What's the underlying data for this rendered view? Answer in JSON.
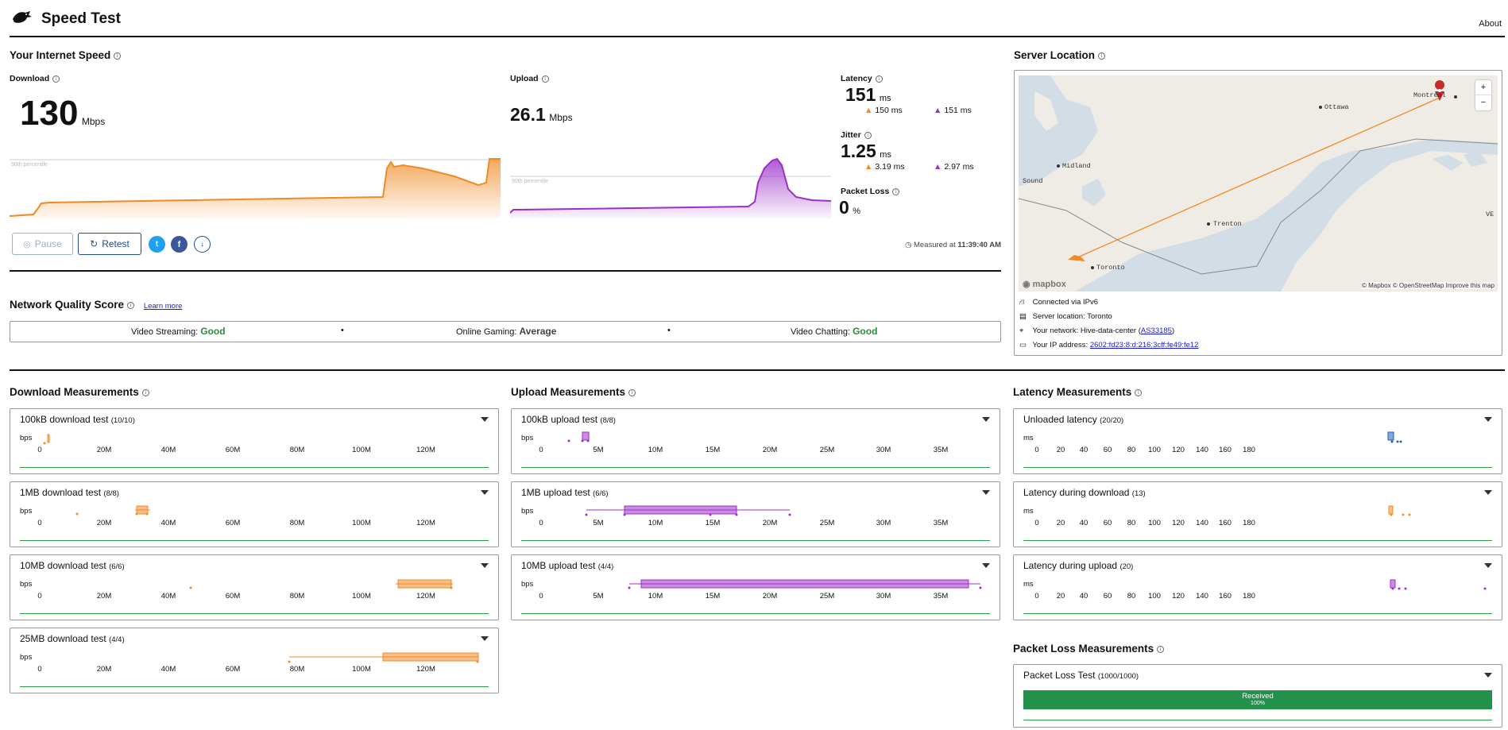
{
  "app": {
    "title": "Speed Test",
    "about": "About"
  },
  "speed": {
    "title": "Your Internet Speed",
    "download_label": "Download",
    "download_value": "130",
    "download_unit": "Mbps",
    "upload_label": "Upload",
    "upload_value": "26.1",
    "upload_unit": "Mbps",
    "percentile_label": "90th percentile",
    "latency_label": "Latency",
    "latency_value": "151",
    "latency_unit": "ms",
    "latency_down": "150 ms",
    "latency_up": "151 ms",
    "jitter_label": "Jitter",
    "jitter_value": "1.25",
    "jitter_unit": "ms",
    "jitter_down": "3.19 ms",
    "jitter_up": "2.97 ms",
    "packet_loss_label": "Packet Loss",
    "packet_loss_value": "0",
    "packet_loss_unit": "%",
    "pause_label": "Pause",
    "retest_label": "Retest",
    "measured_prefix": "Measured at",
    "measured_time": "11:39:40 AM"
  },
  "server": {
    "title": "Server Location",
    "map": {
      "cities": [
        "Montréal",
        "Ottawa",
        "Midland",
        "Trenton",
        "Toronto",
        "Sound",
        "VE"
      ],
      "zoom_in": "+",
      "zoom_out": "−",
      "attribution": "© Mapbox © OpenStreetMap  Improve this map",
      "logo": "mapbox"
    },
    "connected": "Connected via IPv6",
    "location": "Server location: Toronto",
    "network_prefix": "Your network: Hive-data-center (",
    "network_as": "AS33185",
    "network_suffix": ")",
    "ip_prefix": "Your IP address: ",
    "ip": "2602:fd23:8:d:216:3cff:fe49:fe12"
  },
  "nqs": {
    "title": "Network Quality Score",
    "learn_more": "Learn more",
    "items": [
      {
        "label": "Video Streaming:",
        "value": "Good"
      },
      {
        "label": "Online Gaming:",
        "value": "Average"
      },
      {
        "label": "Video Chatting:",
        "value": "Good"
      }
    ],
    "dot": "•"
  },
  "download": {
    "title": "Download Measurements",
    "unit": "bps",
    "ticks": [
      "0",
      "20M",
      "40M",
      "60M",
      "80M",
      "100M",
      "120M"
    ],
    "tests": [
      {
        "name": "100kB download test",
        "count": "(10/10)"
      },
      {
        "name": "1MB download test",
        "count": "(8/8)"
      },
      {
        "name": "10MB download test",
        "count": "(6/6)"
      },
      {
        "name": "25MB download test",
        "count": "(4/4)"
      }
    ]
  },
  "upload": {
    "title": "Upload Measurements",
    "unit": "bps",
    "ticks": [
      "0",
      "5M",
      "10M",
      "15M",
      "20M",
      "25M",
      "30M",
      "35M"
    ],
    "tests": [
      {
        "name": "100kB upload test",
        "count": "(8/8)"
      },
      {
        "name": "1MB upload test",
        "count": "(6/6)"
      },
      {
        "name": "10MB upload test",
        "count": "(4/4)"
      }
    ]
  },
  "latency": {
    "title": "Latency Measurements",
    "unit": "ms",
    "ticks": [
      "0",
      "20",
      "40",
      "60",
      "80",
      "100",
      "120",
      "140",
      "160",
      "180"
    ],
    "tests": [
      {
        "name": "Unloaded latency",
        "count": "(20/20)"
      },
      {
        "name": "Latency during download",
        "count": "(13)"
      },
      {
        "name": "Latency during upload",
        "count": "(20)"
      }
    ]
  },
  "packet": {
    "title": "Packet Loss Measurements",
    "test_name": "Packet Loss Test",
    "test_count": "(1000/1000)",
    "bar_label": "Received",
    "bar_pct": "100%",
    "received_fraction": 1.0
  },
  "colors": {
    "download": "#f08a24",
    "upload": "#9b2fc9",
    "latency_unloaded": "#1f5fbf",
    "good": "#2a8a3c",
    "bar_green": "#22914a"
  }
}
